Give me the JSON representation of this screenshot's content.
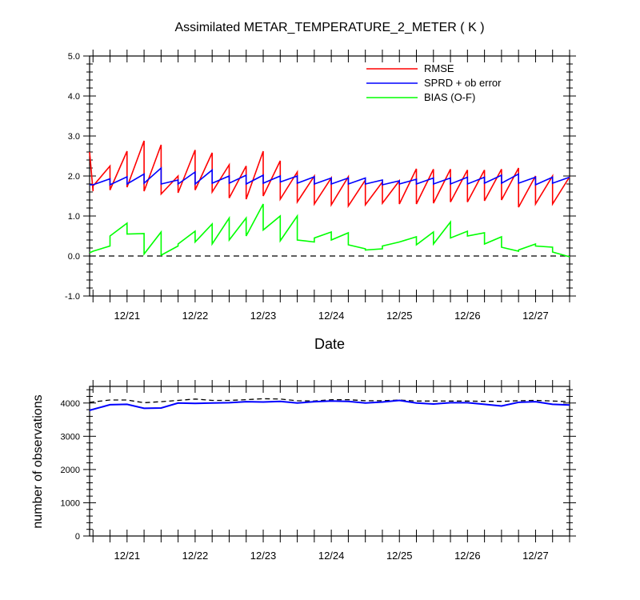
{
  "chart_data": [
    {
      "type": "line",
      "title": "Assimilated METAR_TEMPERATURE_2_METER ( K )",
      "xlabel": "Date",
      "ylabel": "",
      "ylim": [
        -1.0,
        5.0
      ],
      "xlim_days": [
        20.45,
        27.5
      ],
      "yticks": [
        "5.0",
        "4.0",
        "3.0",
        "2.0",
        "1.0",
        "0.0",
        "-1.0"
      ],
      "xtick_labels": [
        "12/21",
        "12/22",
        "12/23",
        "12/24",
        "12/25",
        "12/26",
        "12/27"
      ],
      "legend": {
        "placement": "top-right",
        "entries": [
          "RMSE",
          "SPRD + ob error",
          "BIAS (O-F)"
        ]
      },
      "reference_line": {
        "y": 0.0,
        "style": "dashed",
        "color": "#000000"
      },
      "series": [
        {
          "name": "RMSE",
          "color": "#ff0000",
          "x": [
            20.45,
            20.5,
            20.5,
            20.75,
            20.75,
            21.0,
            21.0,
            21.25,
            21.25,
            21.5,
            21.5,
            21.75,
            21.75,
            22.0,
            22.0,
            22.25,
            22.25,
            22.5,
            22.5,
            22.75,
            22.75,
            23.0,
            23.0,
            23.25,
            23.25,
            23.5,
            23.5,
            23.75,
            23.75,
            24.0,
            24.0,
            24.25,
            24.25,
            24.5,
            24.5,
            24.75,
            24.75,
            25.0,
            25.0,
            25.25,
            25.25,
            25.5,
            25.5,
            25.75,
            25.75,
            26.0,
            26.0,
            26.25,
            26.25,
            26.5,
            26.5,
            26.75,
            26.75,
            27.0,
            27.0,
            27.25,
            27.25,
            27.5
          ],
          "y": [
            2.6,
            1.62,
            1.75,
            2.25,
            1.65,
            2.62,
            1.72,
            2.88,
            1.62,
            2.78,
            1.55,
            2.0,
            1.58,
            2.65,
            1.65,
            2.58,
            1.6,
            2.28,
            1.45,
            2.25,
            1.42,
            2.62,
            1.5,
            2.38,
            1.42,
            2.1,
            1.35,
            2.0,
            1.3,
            1.95,
            1.28,
            1.98,
            1.25,
            1.9,
            1.28,
            1.85,
            1.32,
            1.88,
            1.3,
            2.18,
            1.3,
            2.17,
            1.32,
            2.17,
            1.35,
            2.15,
            1.35,
            2.15,
            1.38,
            2.17,
            1.4,
            2.2,
            1.22,
            2.0,
            1.3,
            2.0,
            1.3,
            1.98
          ]
        },
        {
          "name": "SPRD + ob error",
          "color": "#0000ff",
          "x": [
            20.45,
            20.5,
            20.75,
            20.75,
            21.0,
            21.0,
            21.25,
            21.25,
            21.5,
            21.5,
            21.75,
            21.75,
            22.0,
            22.0,
            22.25,
            22.25,
            22.5,
            22.5,
            22.75,
            22.75,
            23.0,
            23.0,
            23.25,
            23.25,
            23.5,
            23.5,
            23.75,
            23.75,
            24.0,
            24.0,
            24.25,
            24.25,
            24.5,
            24.5,
            24.75,
            24.75,
            25.0,
            25.0,
            25.25,
            25.25,
            25.5,
            25.5,
            25.75,
            25.75,
            26.0,
            26.0,
            26.25,
            26.25,
            26.5,
            26.5,
            26.75,
            26.75,
            27.0,
            27.0,
            27.25,
            27.25,
            27.5
          ],
          "y": [
            1.78,
            1.78,
            1.93,
            1.78,
            1.98,
            1.8,
            2.05,
            1.82,
            2.2,
            1.8,
            1.9,
            1.8,
            2.1,
            1.8,
            2.15,
            1.82,
            2.0,
            1.82,
            2.02,
            1.8,
            2.02,
            1.82,
            2.0,
            1.85,
            2.0,
            1.82,
            1.98,
            1.8,
            1.95,
            1.8,
            1.95,
            1.8,
            1.95,
            1.8,
            1.9,
            1.78,
            1.88,
            1.8,
            1.92,
            1.8,
            1.95,
            1.8,
            1.95,
            1.8,
            1.97,
            1.8,
            1.97,
            1.82,
            2.02,
            1.82,
            2.05,
            1.82,
            1.97,
            1.78,
            1.97,
            1.82,
            1.97
          ]
        },
        {
          "name": "BIAS (O-F)",
          "color": "#00ff00",
          "x": [
            20.45,
            20.5,
            20.75,
            20.75,
            21.0,
            21.0,
            21.25,
            21.25,
            21.5,
            21.5,
            21.75,
            21.75,
            22.0,
            22.0,
            22.25,
            22.25,
            22.5,
            22.5,
            22.75,
            22.75,
            23.0,
            23.0,
            23.25,
            23.25,
            23.5,
            23.5,
            23.75,
            23.75,
            24.0,
            24.0,
            24.25,
            24.25,
            24.5,
            24.5,
            24.75,
            24.75,
            25.0,
            25.0,
            25.25,
            25.25,
            25.5,
            25.5,
            25.75,
            25.75,
            26.0,
            26.0,
            26.25,
            26.25,
            26.5,
            26.5,
            26.75,
            26.75,
            27.0,
            27.0,
            27.25,
            27.25,
            27.5
          ],
          "y": [
            0.08,
            0.12,
            0.25,
            0.5,
            0.82,
            0.55,
            0.56,
            0.05,
            0.6,
            0.02,
            0.25,
            0.3,
            0.62,
            0.35,
            0.8,
            0.3,
            0.95,
            0.4,
            0.95,
            0.5,
            1.3,
            0.65,
            1.0,
            0.38,
            1.0,
            0.4,
            0.35,
            0.45,
            0.6,
            0.4,
            0.58,
            0.28,
            0.18,
            0.15,
            0.18,
            0.25,
            0.35,
            0.35,
            0.48,
            0.28,
            0.6,
            0.3,
            0.85,
            0.45,
            0.62,
            0.5,
            0.58,
            0.3,
            0.48,
            0.22,
            0.12,
            0.15,
            0.3,
            0.25,
            0.22,
            0.1,
            -0.02
          ]
        }
      ]
    },
    {
      "type": "line",
      "title": "",
      "xlabel": "",
      "ylabel": "number of observations",
      "ylim": [
        0,
        4500
      ],
      "yticks": [
        "4000",
        "3000",
        "2000",
        "1000",
        "0"
      ],
      "xtick_labels": [
        "12/21",
        "12/22",
        "12/23",
        "12/24",
        "12/25",
        "12/26",
        "12/27"
      ],
      "series": [
        {
          "color": "#000000",
          "style": "dashed",
          "x": [
            20.45,
            20.75,
            21.0,
            21.25,
            21.5,
            21.75,
            22.0,
            22.25,
            22.5,
            22.75,
            23.0,
            23.25,
            23.5,
            23.75,
            24.0,
            24.25,
            24.5,
            24.75,
            25.0,
            25.25,
            25.5,
            25.75,
            26.0,
            26.25,
            26.5,
            26.75,
            27.0,
            27.25,
            27.5
          ],
          "y": [
            4020,
            4090,
            4090,
            4010,
            4040,
            4080,
            4120,
            4080,
            4080,
            4100,
            4130,
            4120,
            4070,
            4060,
            4100,
            4100,
            4070,
            4070,
            4090,
            4060,
            4060,
            4060,
            4060,
            4050,
            4050,
            4070,
            4080,
            4060,
            4040
          ]
        },
        {
          "color": "#0000ff",
          "style": "solid",
          "x": [
            20.45,
            20.75,
            21.0,
            21.25,
            21.5,
            21.75,
            22.0,
            22.25,
            22.5,
            22.75,
            23.0,
            23.25,
            23.5,
            23.75,
            24.0,
            24.25,
            24.5,
            24.75,
            25.0,
            25.25,
            25.5,
            25.75,
            26.0,
            26.25,
            26.5,
            26.75,
            27.0,
            27.25,
            27.5
          ],
          "y": [
            3780,
            3950,
            3960,
            3840,
            3850,
            4000,
            3990,
            4000,
            4010,
            4040,
            4030,
            4050,
            4000,
            4040,
            4060,
            4050,
            4000,
            4030,
            4080,
            4000,
            3970,
            4010,
            4010,
            3960,
            3910,
            4020,
            4040,
            3960,
            3940
          ]
        }
      ]
    }
  ]
}
